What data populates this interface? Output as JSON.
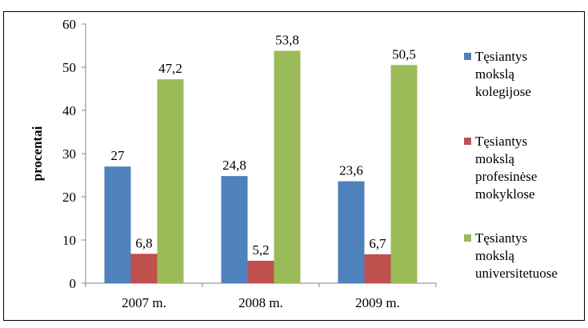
{
  "chart_data": {
    "type": "bar",
    "title": "",
    "xlabel": "",
    "ylabel": "procentai",
    "ylim": [
      0,
      60
    ],
    "yticks": [
      0,
      10,
      20,
      30,
      40,
      50,
      60
    ],
    "grid": false,
    "legend_position": "right",
    "categories": [
      "2007 m.",
      "2008 m.",
      "2009 m."
    ],
    "series": [
      {
        "name": "Tęsiantys mokslą kolegijose",
        "legend_lines": [
          "Tęsiantys",
          "mokslą",
          "kolegijose"
        ],
        "color": "#4f81bd",
        "values": [
          27,
          24.8,
          23.6
        ],
        "labels": [
          "27",
          "24,8",
          "23,6"
        ]
      },
      {
        "name": "Tęsiantys mokslą profesinėse mokyklose",
        "legend_lines": [
          "Tęsiantys",
          "mokslą",
          "profesinėse",
          "mokyklose"
        ],
        "color": "#c0504d",
        "values": [
          6.8,
          5.2,
          6.7
        ],
        "labels": [
          "6,8",
          "5,2",
          "6,7"
        ]
      },
      {
        "name": "Tęsiantys mokslą universitetuose",
        "legend_lines": [
          "Tęsiantys",
          "mokslą",
          "universitetuose"
        ],
        "color": "#9bbb59",
        "values": [
          47.2,
          53.8,
          50.5
        ],
        "labels": [
          "47,2",
          "53,8",
          "50,5"
        ]
      }
    ]
  }
}
